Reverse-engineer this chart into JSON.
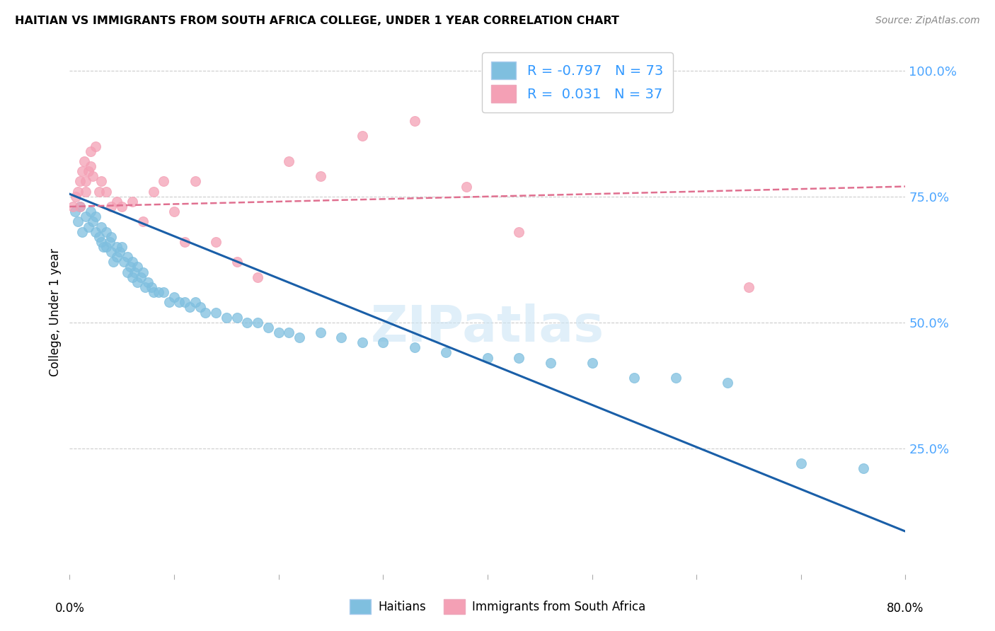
{
  "title": "HAITIAN VS IMMIGRANTS FROM SOUTH AFRICA COLLEGE, UNDER 1 YEAR CORRELATION CHART",
  "source": "Source: ZipAtlas.com",
  "ylabel": "College, Under 1 year",
  "legend_labels": [
    "Haitians",
    "Immigrants from South Africa"
  ],
  "legend_R_blue": "R = -0.797",
  "legend_R_pink": "R =  0.031",
  "legend_N_blue": "N = 73",
  "legend_N_pink": "N = 37",
  "blue_color": "#7fbfdf",
  "pink_color": "#f4a0b5",
  "blue_line_color": "#1a5fa8",
  "pink_line_color": "#e07090",
  "watermark": "ZIPatlas",
  "xlim": [
    0.0,
    0.8
  ],
  "ylim": [
    0.0,
    1.04
  ],
  "ytick_vals": [
    0.25,
    0.5,
    0.75,
    1.0
  ],
  "ytick_labels": [
    "25.0%",
    "50.0%",
    "75.0%",
    "100.0%"
  ],
  "blue_scatter_x": [
    0.005,
    0.008,
    0.01,
    0.012,
    0.015,
    0.018,
    0.02,
    0.022,
    0.025,
    0.025,
    0.028,
    0.03,
    0.03,
    0.032,
    0.035,
    0.035,
    0.038,
    0.04,
    0.04,
    0.042,
    0.045,
    0.045,
    0.048,
    0.05,
    0.052,
    0.055,
    0.055,
    0.058,
    0.06,
    0.06,
    0.062,
    0.065,
    0.065,
    0.068,
    0.07,
    0.072,
    0.075,
    0.078,
    0.08,
    0.085,
    0.09,
    0.095,
    0.1,
    0.105,
    0.11,
    0.115,
    0.12,
    0.125,
    0.13,
    0.14,
    0.15,
    0.16,
    0.17,
    0.18,
    0.19,
    0.2,
    0.21,
    0.22,
    0.24,
    0.26,
    0.28,
    0.3,
    0.33,
    0.36,
    0.4,
    0.43,
    0.46,
    0.5,
    0.54,
    0.58,
    0.63,
    0.7,
    0.76
  ],
  "blue_scatter_y": [
    0.72,
    0.7,
    0.73,
    0.68,
    0.71,
    0.69,
    0.72,
    0.7,
    0.71,
    0.68,
    0.67,
    0.69,
    0.66,
    0.65,
    0.68,
    0.65,
    0.66,
    0.67,
    0.64,
    0.62,
    0.65,
    0.63,
    0.64,
    0.65,
    0.62,
    0.63,
    0.6,
    0.61,
    0.62,
    0.59,
    0.6,
    0.61,
    0.58,
    0.59,
    0.6,
    0.57,
    0.58,
    0.57,
    0.56,
    0.56,
    0.56,
    0.54,
    0.55,
    0.54,
    0.54,
    0.53,
    0.54,
    0.53,
    0.52,
    0.52,
    0.51,
    0.51,
    0.5,
    0.5,
    0.49,
    0.48,
    0.48,
    0.47,
    0.48,
    0.47,
    0.46,
    0.46,
    0.45,
    0.44,
    0.43,
    0.43,
    0.42,
    0.42,
    0.39,
    0.39,
    0.38,
    0.22,
    0.21
  ],
  "pink_scatter_x": [
    0.003,
    0.006,
    0.008,
    0.01,
    0.01,
    0.012,
    0.014,
    0.015,
    0.015,
    0.018,
    0.02,
    0.02,
    0.022,
    0.025,
    0.028,
    0.03,
    0.035,
    0.04,
    0.045,
    0.05,
    0.06,
    0.07,
    0.08,
    0.09,
    0.1,
    0.11,
    0.12,
    0.14,
    0.16,
    0.18,
    0.21,
    0.24,
    0.28,
    0.33,
    0.38,
    0.43,
    0.65
  ],
  "pink_scatter_y": [
    0.73,
    0.75,
    0.76,
    0.78,
    0.73,
    0.8,
    0.82,
    0.78,
    0.76,
    0.8,
    0.84,
    0.81,
    0.79,
    0.85,
    0.76,
    0.78,
    0.76,
    0.73,
    0.74,
    0.73,
    0.74,
    0.7,
    0.76,
    0.78,
    0.72,
    0.66,
    0.78,
    0.66,
    0.62,
    0.59,
    0.82,
    0.79,
    0.87,
    0.9,
    0.77,
    0.68,
    0.57
  ],
  "blue_line_x0": 0.0,
  "blue_line_y0": 0.755,
  "blue_line_x1": 0.8,
  "blue_line_y1": 0.085,
  "pink_line_x0": 0.0,
  "pink_line_y0": 0.73,
  "pink_line_x1": 0.8,
  "pink_line_y1": 0.77
}
